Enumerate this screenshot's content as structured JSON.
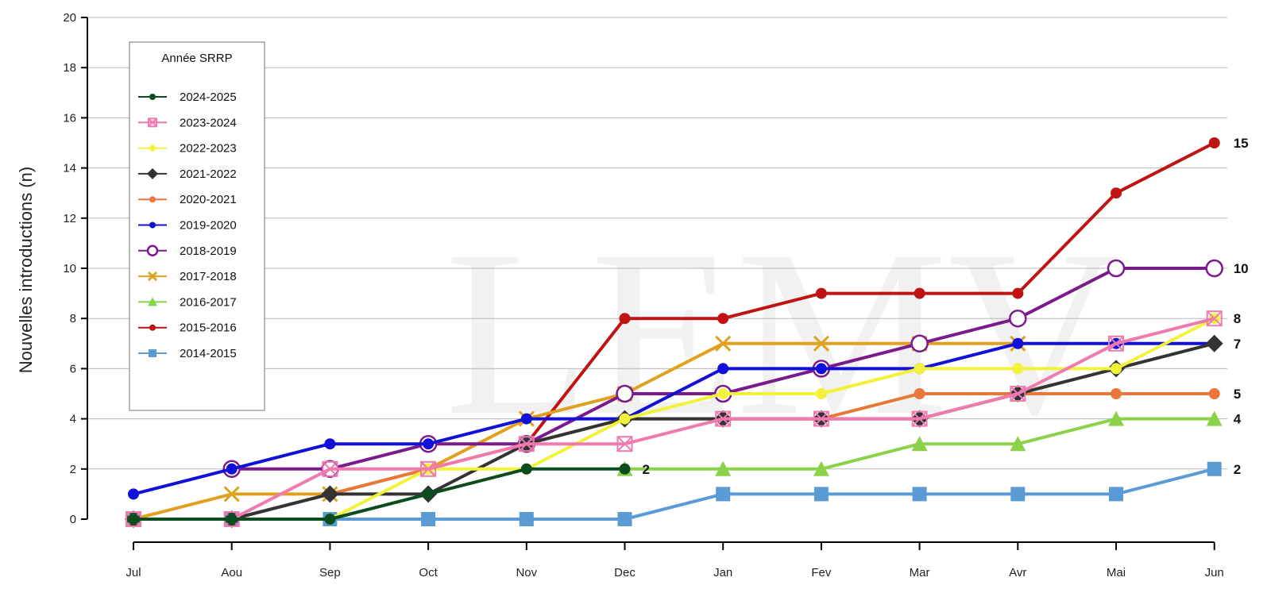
{
  "chart_data": {
    "type": "line",
    "title": "",
    "xlabel": "",
    "ylabel": "Nouvelles introductions (n)",
    "ylim": [
      0,
      20
    ],
    "yticks": [
      "0",
      "2",
      "4",
      "6",
      "8",
      "10",
      "12",
      "14",
      "16",
      "18",
      "20"
    ],
    "categories": [
      "Jul",
      "Aou",
      "Sep",
      "Oct",
      "Nov",
      "Dec",
      "Jan",
      "Fev",
      "Mar",
      "Avr",
      "Mai",
      "Jun"
    ],
    "grid": "horizontal",
    "legend": {
      "title": "Année SRRP",
      "position": "top-left"
    },
    "watermark": "LEMV",
    "series": [
      {
        "name": "2024-2025",
        "color": "#0b4d1e",
        "marker": "dot",
        "values": [
          0,
          0,
          0,
          1,
          2,
          2,
          null,
          null,
          null,
          null,
          null,
          null
        ],
        "end_label": "2"
      },
      {
        "name": "2023-2024",
        "color": "#f07ab0",
        "marker": "square-x",
        "values": [
          0,
          0,
          2,
          2,
          3,
          3,
          4,
          4,
          4,
          5,
          7,
          8
        ],
        "end_label": "8"
      },
      {
        "name": "2022-2023",
        "color": "#f2f23a",
        "marker": "dot",
        "values": [
          0,
          0,
          0,
          2,
          2,
          4,
          5,
          5,
          6,
          6,
          6,
          8
        ],
        "end_label": ""
      },
      {
        "name": "2021-2022",
        "color": "#333333",
        "marker": "diamond",
        "values": [
          0,
          0,
          1,
          1,
          3,
          4,
          4,
          4,
          4,
          5,
          6,
          7
        ],
        "end_label": "7"
      },
      {
        "name": "2020-2021",
        "color": "#e8773a",
        "marker": "dot",
        "values": [
          0,
          0,
          1,
          2,
          3,
          4,
          4,
          4,
          5,
          5,
          5,
          5
        ],
        "end_label": "5"
      },
      {
        "name": "2019-2020",
        "color": "#1010d8",
        "marker": "dot",
        "values": [
          1,
          2,
          3,
          3,
          4,
          4,
          6,
          6,
          6,
          7,
          7,
          7
        ],
        "end_label": ""
      },
      {
        "name": "2018-2019",
        "color": "#7a1a8c",
        "marker": "circle-open",
        "values": [
          null,
          2,
          2,
          3,
          3,
          5,
          5,
          6,
          7,
          8,
          10,
          10
        ],
        "end_label": "10"
      },
      {
        "name": "2017-2018",
        "color": "#e0a020",
        "marker": "x",
        "values": [
          0,
          1,
          1,
          2,
          4,
          5,
          7,
          7,
          7,
          7,
          null,
          null
        ],
        "end_label": ""
      },
      {
        "name": "2016-2017",
        "color": "#8ad24a",
        "marker": "triangle",
        "values": [
          null,
          null,
          null,
          null,
          null,
          2,
          2,
          2,
          3,
          3,
          4,
          4
        ],
        "end_label": "4"
      },
      {
        "name": "2015-2016",
        "color": "#c01414",
        "marker": "dot",
        "values": [
          null,
          null,
          null,
          null,
          3,
          8,
          8,
          9,
          9,
          9,
          13,
          15
        ],
        "end_label": "15"
      },
      {
        "name": "2014-2015",
        "color": "#5b9bd5",
        "marker": "square",
        "values": [
          0,
          0,
          0,
          0,
          0,
          0,
          1,
          1,
          1,
          1,
          1,
          2
        ],
        "end_label": "2"
      }
    ]
  }
}
